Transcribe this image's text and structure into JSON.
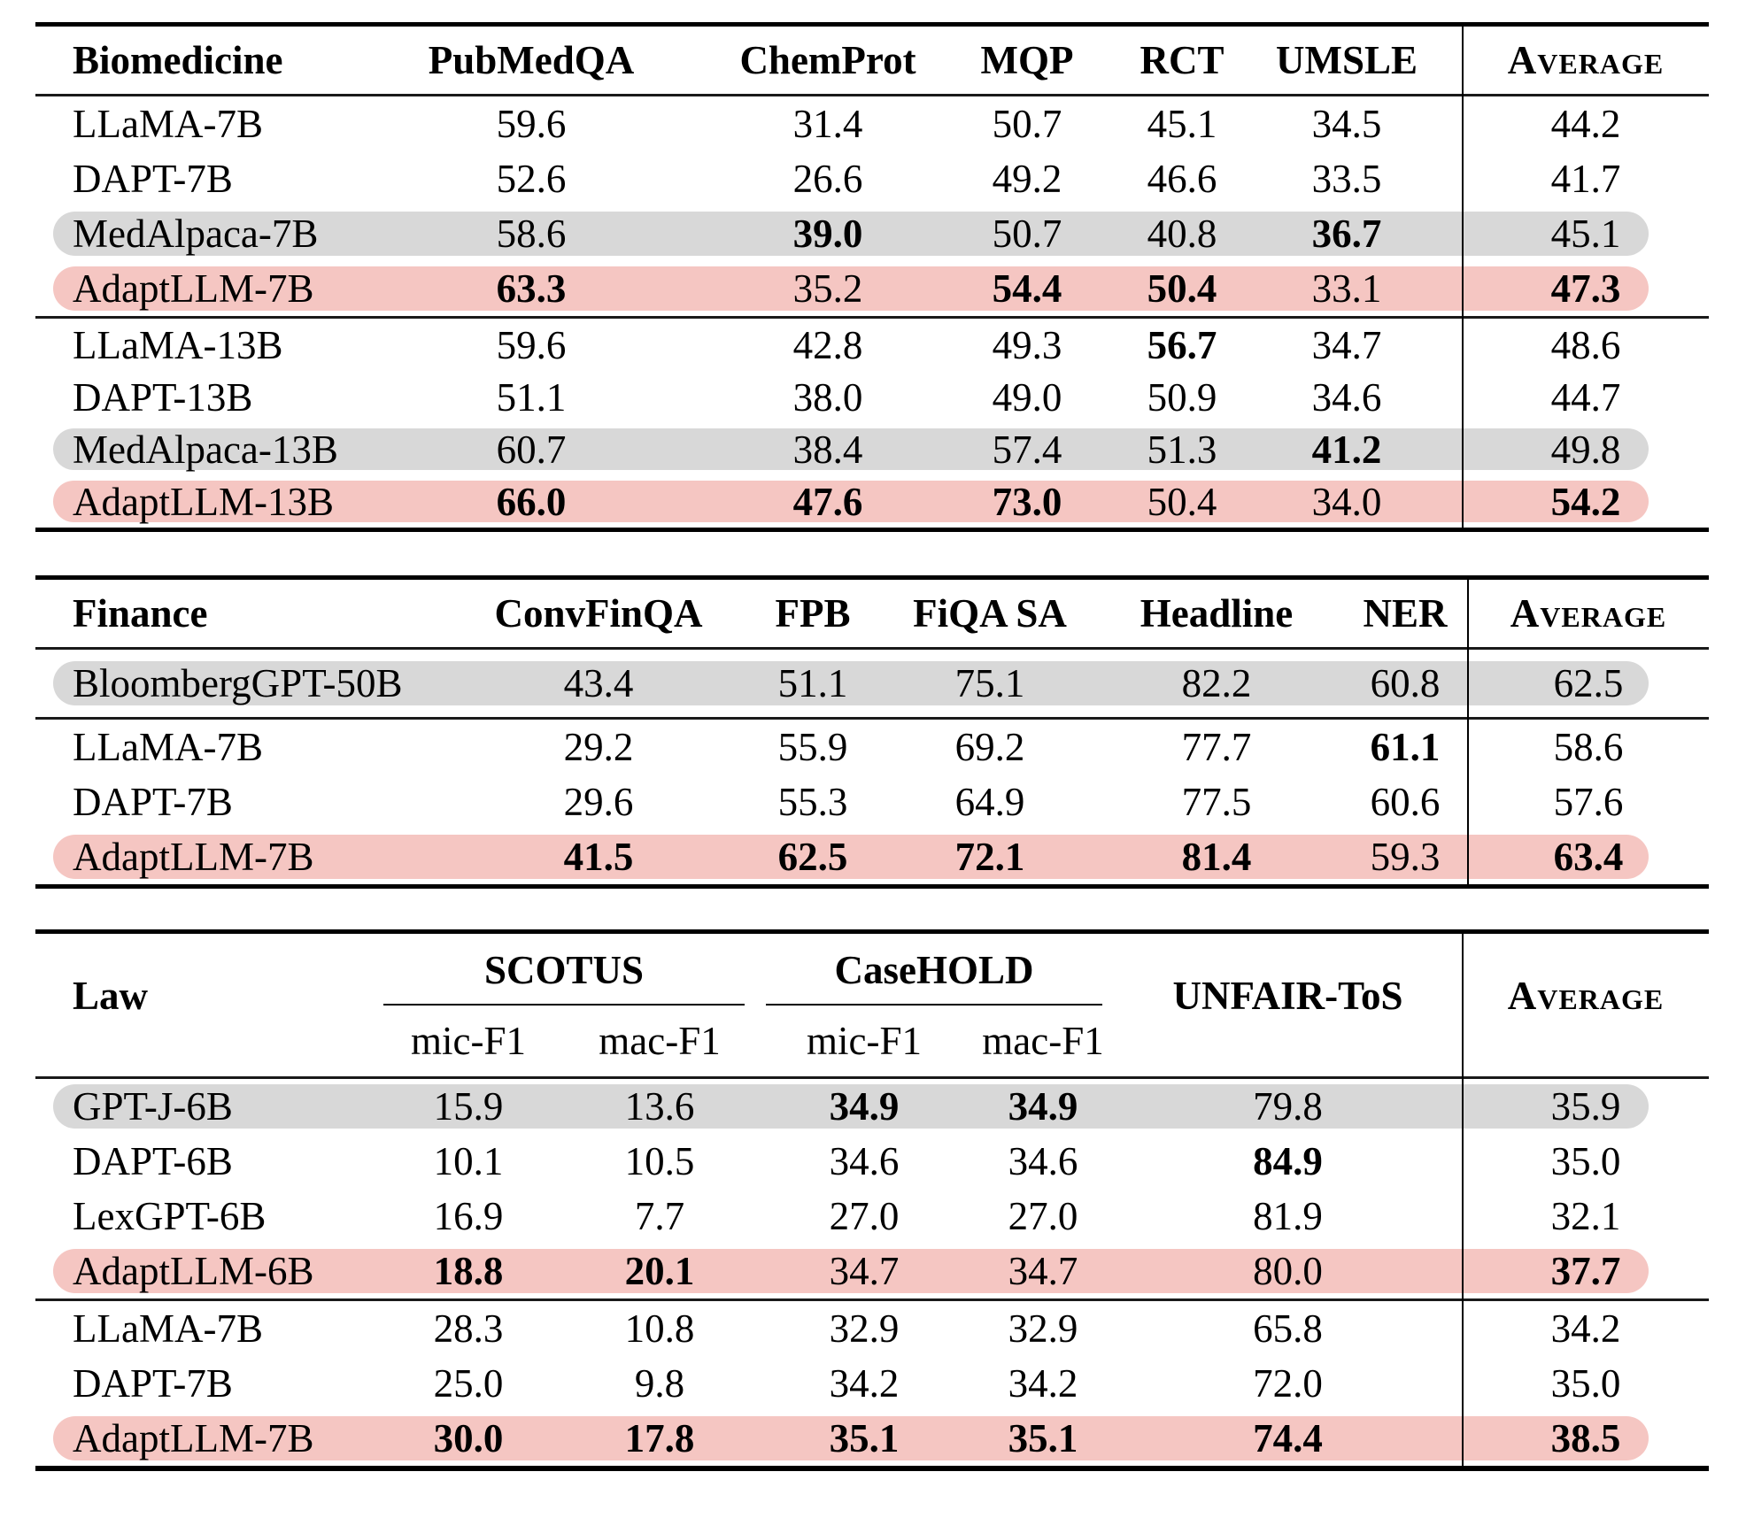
{
  "colors": {
    "gray_highlight": "#d8d8d8",
    "pink_highlight": "#f5c6c2",
    "rule": "#000000",
    "text": "#000000",
    "background": "#ffffff"
  },
  "tables": [
    {
      "id": "biomedicine",
      "label": "Biomedicine",
      "columns": [
        "PubMedQA",
        "ChemProt",
        "MQP",
        "RCT",
        "UMSLE"
      ],
      "average_label": "Average",
      "groups": [
        [
          {
            "model": "LLaMA-7B",
            "hl": "",
            "cells": [
              "59.6",
              "31.4",
              "50.7",
              "45.1",
              "34.5",
              "44.2"
            ],
            "bold": [
              0,
              0,
              0,
              0,
              0,
              0
            ]
          },
          {
            "model": "DAPT-7B",
            "hl": "",
            "cells": [
              "52.6",
              "26.6",
              "49.2",
              "46.6",
              "33.5",
              "41.7"
            ],
            "bold": [
              0,
              0,
              0,
              0,
              0,
              0
            ]
          },
          {
            "model": "MedAlpaca-7B",
            "hl": "gray",
            "cells": [
              "58.6",
              "39.0",
              "50.7",
              "40.8",
              "36.7",
              "45.1"
            ],
            "bold": [
              0,
              1,
              0,
              0,
              1,
              0
            ]
          },
          {
            "model": "AdaptLLM-7B",
            "hl": "pink",
            "cells": [
              "63.3",
              "35.2",
              "54.4",
              "50.4",
              "33.1",
              "47.3"
            ],
            "bold": [
              1,
              0,
              1,
              1,
              0,
              1
            ]
          }
        ],
        [
          {
            "model": "LLaMA-13B",
            "hl": "",
            "cells": [
              "59.6",
              "42.8",
              "49.3",
              "56.7",
              "34.7",
              "48.6"
            ],
            "bold": [
              0,
              0,
              0,
              1,
              0,
              0
            ]
          },
          {
            "model": "DAPT-13B",
            "hl": "",
            "cells": [
              "51.1",
              "38.0",
              "49.0",
              "50.9",
              "34.6",
              "44.7"
            ],
            "bold": [
              0,
              0,
              0,
              0,
              0,
              0
            ]
          },
          {
            "model": "MedAlpaca-13B",
            "hl": "gray",
            "cells": [
              "60.7",
              "38.4",
              "57.4",
              "51.3",
              "41.2",
              "49.8"
            ],
            "bold": [
              0,
              0,
              0,
              0,
              1,
              0
            ]
          },
          {
            "model": "AdaptLLM-13B",
            "hl": "pink",
            "cells": [
              "66.0",
              "47.6",
              "73.0",
              "50.4",
              "34.0",
              "54.2"
            ],
            "bold": [
              1,
              1,
              1,
              0,
              0,
              1
            ]
          }
        ]
      ]
    },
    {
      "id": "finance",
      "label": "Finance",
      "columns": [
        "ConvFinQA",
        "FPB",
        "FiQA SA",
        "Headline",
        "NER"
      ],
      "average_label": "Average",
      "groups": [
        [
          {
            "model": "BloombergGPT-50B",
            "hl": "gray",
            "cells": [
              "43.4",
              "51.1",
              "75.1",
              "82.2",
              "60.8",
              "62.5"
            ],
            "bold": [
              0,
              0,
              0,
              0,
              0,
              0
            ]
          }
        ],
        [
          {
            "model": "LLaMA-7B",
            "hl": "",
            "cells": [
              "29.2",
              "55.9",
              "69.2",
              "77.7",
              "61.1",
              "58.6"
            ],
            "bold": [
              0,
              0,
              0,
              0,
              1,
              0
            ]
          },
          {
            "model": "DAPT-7B",
            "hl": "",
            "cells": [
              "29.6",
              "55.3",
              "64.9",
              "77.5",
              "60.6",
              "57.6"
            ],
            "bold": [
              0,
              0,
              0,
              0,
              0,
              0
            ]
          },
          {
            "model": "AdaptLLM-7B",
            "hl": "pink",
            "cells": [
              "41.5",
              "62.5",
              "72.1",
              "81.4",
              "59.3",
              "63.4"
            ],
            "bold": [
              1,
              1,
              1,
              1,
              0,
              1
            ]
          }
        ]
      ]
    },
    {
      "id": "law",
      "label": "Law",
      "group_columns": [
        "SCOTUS",
        "CaseHOLD"
      ],
      "subcolumns": [
        "mic-F1",
        "mac-F1",
        "mic-F1",
        "mac-F1"
      ],
      "last_column": "UNFAIR-ToS",
      "average_label": "Average",
      "groups": [
        [
          {
            "model": "GPT-J-6B",
            "hl": "gray",
            "cells": [
              "15.9",
              "13.6",
              "34.9",
              "34.9",
              "79.8",
              "35.9"
            ],
            "bold": [
              0,
              0,
              1,
              1,
              0,
              0
            ]
          },
          {
            "model": "DAPT-6B",
            "hl": "",
            "cells": [
              "10.1",
              "10.5",
              "34.6",
              "34.6",
              "84.9",
              "35.0"
            ],
            "bold": [
              0,
              0,
              0,
              0,
              1,
              0
            ]
          },
          {
            "model": "LexGPT-6B",
            "hl": "",
            "cells": [
              "16.9",
              "7.7",
              "27.0",
              "27.0",
              "81.9",
              "32.1"
            ],
            "bold": [
              0,
              0,
              0,
              0,
              0,
              0
            ]
          },
          {
            "model": "AdaptLLM-6B",
            "hl": "pink",
            "cells": [
              "18.8",
              "20.1",
              "34.7",
              "34.7",
              "80.0",
              "37.7"
            ],
            "bold": [
              1,
              1,
              0,
              0,
              0,
              1
            ]
          }
        ],
        [
          {
            "model": "LLaMA-7B",
            "hl": "",
            "cells": [
              "28.3",
              "10.8",
              "32.9",
              "32.9",
              "65.8",
              "34.2"
            ],
            "bold": [
              0,
              0,
              0,
              0,
              0,
              0
            ]
          },
          {
            "model": "DAPT-7B",
            "hl": "",
            "cells": [
              "25.0",
              "9.8",
              "34.2",
              "34.2",
              "72.0",
              "35.0"
            ],
            "bold": [
              0,
              0,
              0,
              0,
              0,
              0
            ]
          },
          {
            "model": "AdaptLLM-7B",
            "hl": "pink",
            "cells": [
              "30.0",
              "17.8",
              "35.1",
              "35.1",
              "74.4",
              "38.5"
            ],
            "bold": [
              1,
              1,
              1,
              1,
              1,
              1
            ]
          }
        ]
      ]
    }
  ]
}
